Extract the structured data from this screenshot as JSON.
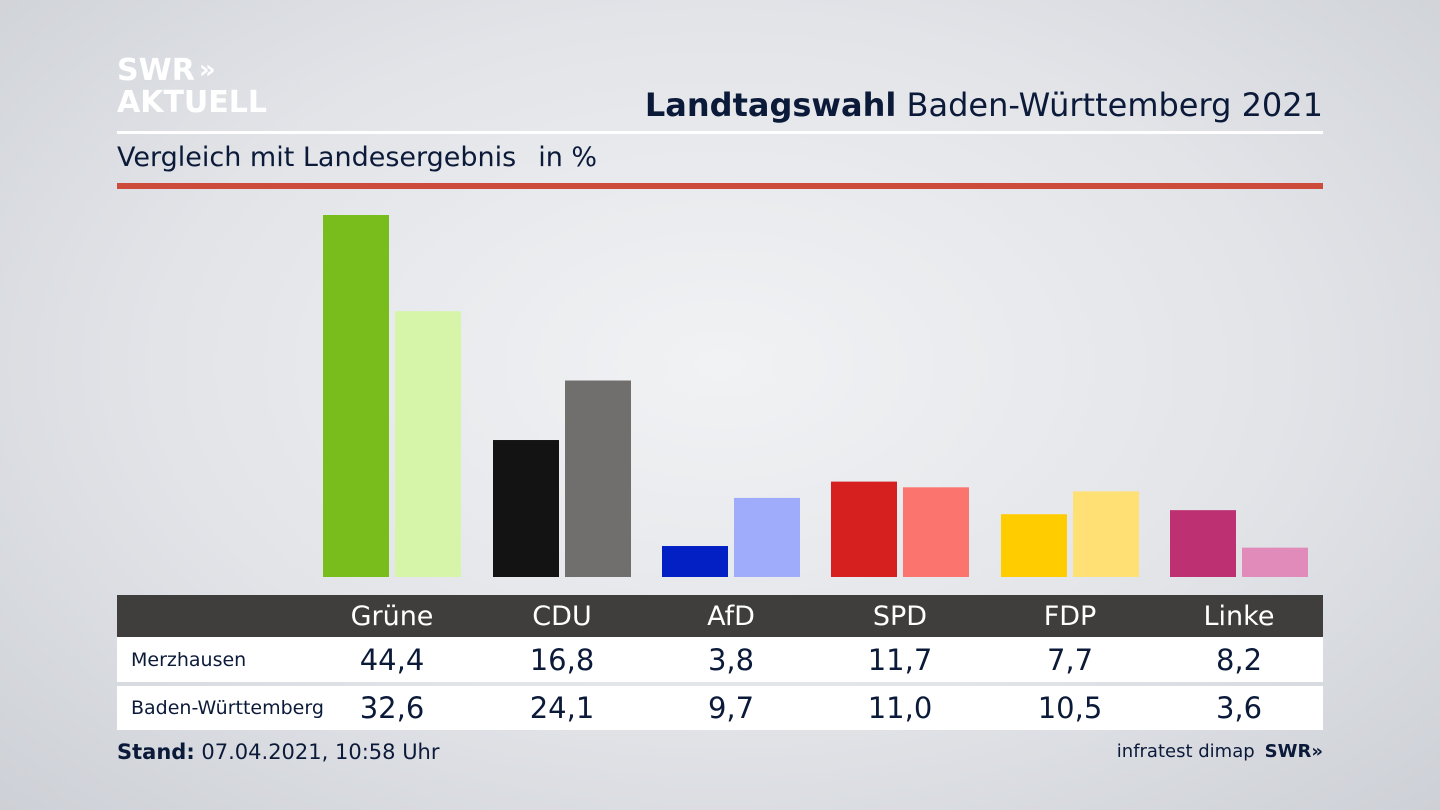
{
  "brand": {
    "line1": "SWR",
    "chevrons": "»",
    "line2": "AKTUELL"
  },
  "header": {
    "title_bold": "Landtagswahl",
    "title_rest": "Baden-Württemberg 2021"
  },
  "subtitle": {
    "text": "Vergleich mit Landesergebnis",
    "unit": "in %"
  },
  "chart_data": {
    "type": "bar",
    "title": "Landtagswahl Baden-Württemberg 2021",
    "subtitle": "Vergleich mit Landesergebnis in %",
    "categories": [
      "Grüne",
      "CDU",
      "AfD",
      "SPD",
      "FDP",
      "Linke"
    ],
    "series": [
      {
        "name": "Merzhausen",
        "values": [
          44.4,
          16.8,
          3.8,
          11.7,
          7.7,
          8.2
        ],
        "labels": [
          "44,4",
          "16,8",
          "3,8",
          "11,7",
          "7,7",
          "8,2"
        ]
      },
      {
        "name": "Baden-Württemberg",
        "values": [
          32.6,
          24.1,
          9.7,
          11.0,
          10.5,
          3.6
        ],
        "labels": [
          "32,6",
          "24,1",
          "9,7",
          "11,0",
          "10,5",
          "3,6"
        ]
      }
    ],
    "colors": {
      "Merzhausen": [
        "#79bd1d",
        "#131313",
        "#0220c4",
        "#d6201f",
        "#ffcc00",
        "#bd3173"
      ],
      "Baden-Württemberg": [
        "#d6f5a8",
        "#716f6d",
        "#9eacfb",
        "#fc746e",
        "#fee074",
        "#e08bb9"
      ]
    },
    "ylim": [
      0,
      44.4
    ],
    "grid": false,
    "legend": "table-below"
  },
  "footer": {
    "stand_label": "Stand:",
    "stand_value": "07.04.2021, 10:58 Uhr",
    "source": "infratest dimap",
    "source_brand": "SWR",
    "source_chevrons": "»"
  }
}
